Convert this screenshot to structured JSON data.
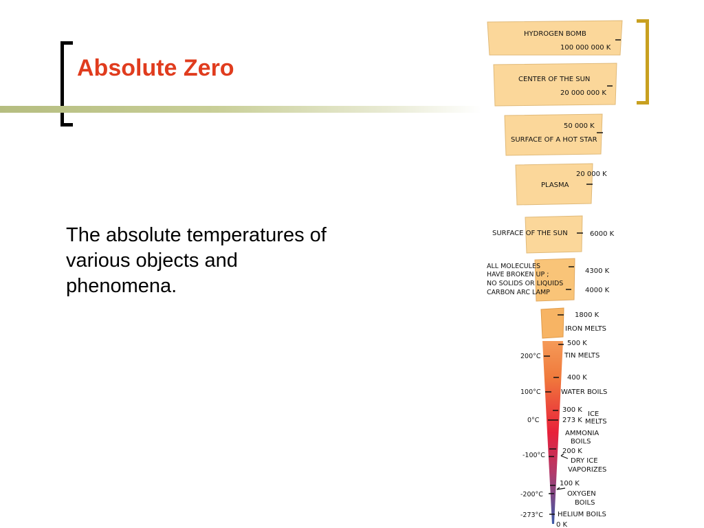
{
  "slide": {
    "title": "Absolute Zero",
    "body_lines": [
      "The absolute temperatures of",
      "various objects and",
      "phenomena."
    ]
  },
  "colors": {
    "title": "#e03c1e",
    "bracket_left": "#000000",
    "bracket_right": "#c8a020",
    "rule": "#b5bd80",
    "card": "#fbd79a",
    "card_orange": "#f7b464"
  },
  "temperature_scale": {
    "cards": {
      "hydrogen_bomb": {
        "label": "HYDROGEN BOMB",
        "value": "100 000 000 K"
      },
      "center_sun": {
        "label": "CENTER OF THE SUN",
        "value": "20 000 000 K"
      },
      "hot_star": {
        "label": "SURFACE OF A HOT STAR",
        "value": "50 000 K"
      },
      "plasma": {
        "label": "PLASMA",
        "value": "20 000 K"
      },
      "surface_sun": {
        "label": "SURFACE OF THE SUN",
        "value": "6000 K"
      },
      "molecules": {
        "lines": [
          "ALL MOLECULES",
          "HAVE BROKEN UP ;",
          "NO SOLIDS OR LIQUIDS",
          "CARBON ARC LAMP"
        ],
        "value_a": "4300 K",
        "value_b": "4000 K"
      },
      "iron": {
        "value": "1800 K",
        "label": "IRON MELTS"
      }
    },
    "thermometer": {
      "tin_k": "500 K",
      "tin_c": "200°C",
      "tin_label": "TIN MELTS",
      "water_k": "400 K",
      "water_c": "100°C",
      "water_label": "WATER BOILS",
      "ice_k300": "300 K",
      "ice_k273": "273 K",
      "ice_c": "0°C",
      "ice_label_1": "ICE",
      "ice_label_2": "MELTS",
      "ammonia_1": "AMMONIA",
      "ammonia_2": "BOILS",
      "dry_k": "200 K",
      "dry_c": "-100°C",
      "dry_1": "DRY ICE",
      "dry_2": "VAPORIZES",
      "oxygen_k": "100 K",
      "oxygen_c": "-200°C",
      "oxygen_1": "OXYGEN",
      "oxygen_2": "BOILS",
      "helium_c": "-273°C",
      "helium_label": "HELIUM BOILS",
      "zero_k": "0 K"
    }
  }
}
